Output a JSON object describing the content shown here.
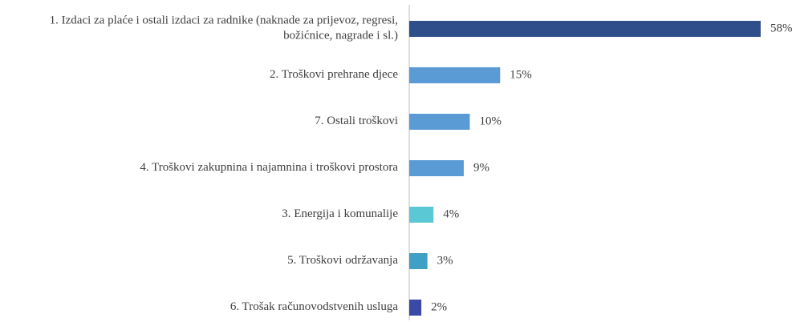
{
  "chart_data": {
    "type": "bar",
    "orientation": "horizontal",
    "categories": [
      "1. Izdaci za plaće i ostali izdaci za radnike (naknade za prijevoz, regresi,\nbožićnice, nagrade i sl.)",
      "2. Troškovi prehrane djece",
      "7. Ostali troškovi",
      "4. Troškovi zakupnina i najamnina i troškovi prostora",
      "3. Energija i komunalije",
      "5. Troškovi održavanja",
      "6. Trošak računovodstvenih usluga"
    ],
    "values": [
      58,
      15,
      10,
      9,
      4,
      3,
      2
    ],
    "value_labels": [
      "58%",
      "15%",
      "10%",
      "9%",
      "4%",
      "3%",
      "2%"
    ],
    "colors": [
      "#2e4f8a",
      "#5b9bd5",
      "#5b9bd5",
      "#5b9bd5",
      "#5bc8d6",
      "#3f9fc4",
      "#3b48a8"
    ],
    "xlim": [
      0,
      58
    ]
  }
}
